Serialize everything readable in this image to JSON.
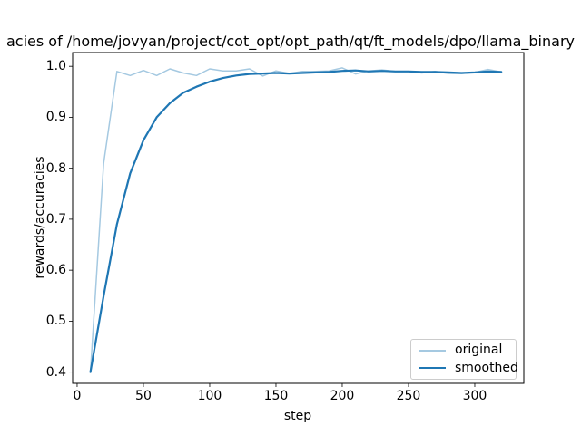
{
  "figure": {
    "title": "acies of /home/jovyan/project/cot_opt/opt_path/qt/ft_models/dpo/llama_binary",
    "xlabel": "step",
    "ylabel": "rewards/accuracies"
  },
  "chart_data": {
    "type": "line",
    "title": "acies of /home/jovyan/project/cot_opt/opt_path/qt/ft_models/dpo/llama_binary",
    "xlabel": "step",
    "ylabel": "rewards/accuracies",
    "xlim": [
      -3.4,
      337
    ],
    "ylim": [
      0.378,
      1.027
    ],
    "xticks": [
      0,
      50,
      100,
      150,
      200,
      250,
      300
    ],
    "yticks": [
      0.4,
      0.5,
      0.6,
      0.7,
      0.8,
      0.9,
      1.0
    ],
    "grid": false,
    "legend_position": "lower right",
    "axes_color": "#000000",
    "x": [
      10,
      20,
      30,
      40,
      50,
      60,
      70,
      80,
      90,
      100,
      110,
      120,
      130,
      140,
      150,
      160,
      170,
      180,
      190,
      200,
      210,
      220,
      230,
      240,
      250,
      260,
      270,
      280,
      290,
      300,
      310,
      320
    ],
    "series": [
      {
        "name": "original",
        "color": "#a5c9e1",
        "linewidth": 1.5,
        "values": [
          0.4,
          0.81,
          0.99,
          0.982,
          0.992,
          0.982,
          0.995,
          0.987,
          0.982,
          0.995,
          0.991,
          0.991,
          0.995,
          0.981,
          0.991,
          0.986,
          0.99,
          0.99,
          0.991,
          0.997,
          0.985,
          0.991,
          0.993,
          0.99,
          0.99,
          0.987,
          0.99,
          0.986,
          0.986,
          0.988,
          0.994,
          0.989
        ]
      },
      {
        "name": "smoothed",
        "color": "#1f77b4",
        "linewidth": 2.2,
        "values": [
          0.4,
          0.55,
          0.69,
          0.79,
          0.855,
          0.9,
          0.928,
          0.948,
          0.96,
          0.97,
          0.977,
          0.982,
          0.985,
          0.986,
          0.987,
          0.986,
          0.987,
          0.988,
          0.989,
          0.991,
          0.992,
          0.99,
          0.991,
          0.99,
          0.99,
          0.989,
          0.989,
          0.988,
          0.987,
          0.988,
          0.99,
          0.989
        ]
      }
    ]
  }
}
